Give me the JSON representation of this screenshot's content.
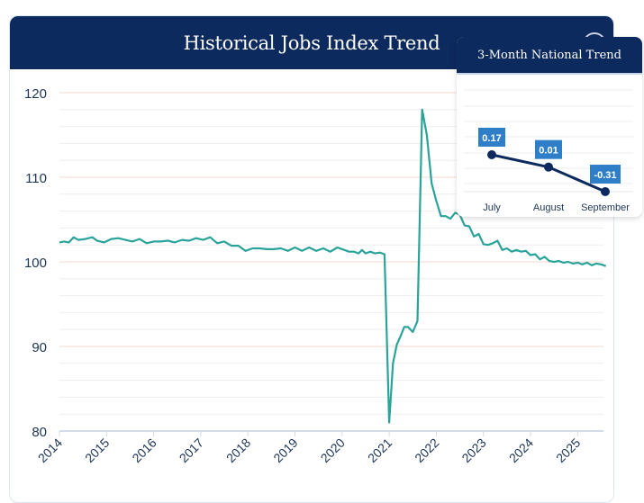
{
  "chart_data": [
    {
      "type": "line",
      "title": "Historical Jobs Index Trend",
      "xlabel": "",
      "ylabel": "",
      "ylim": [
        80,
        120
      ],
      "xlim": [
        2014,
        2025.75
      ],
      "yticks": [
        80,
        90,
        100,
        110,
        120
      ],
      "xticks": [
        "2014",
        "2015",
        "2016",
        "2017",
        "2018",
        "2019",
        "2020",
        "2021",
        "2022",
        "2023",
        "2024",
        "2025"
      ],
      "grid": true,
      "color": "#2aa39a",
      "x": [
        2014.0,
        2014.1,
        2014.2,
        2014.3,
        2014.4,
        2014.55,
        2014.7,
        2014.8,
        2014.95,
        2015.1,
        2015.25,
        2015.4,
        2015.55,
        2015.7,
        2015.85,
        2016.0,
        2016.15,
        2016.3,
        2016.45,
        2016.6,
        2016.75,
        2016.9,
        2017.05,
        2017.2,
        2017.35,
        2017.5,
        2017.65,
        2017.8,
        2017.95,
        2018.1,
        2018.25,
        2018.4,
        2018.55,
        2018.7,
        2018.85,
        2019.0,
        2019.15,
        2019.3,
        2019.45,
        2019.6,
        2019.75,
        2019.9,
        2020.05,
        2020.15,
        2020.25,
        2020.35,
        2020.42,
        2020.5,
        2020.6,
        2020.7,
        2020.8,
        2020.9,
        2021.0,
        2021.08,
        2021.16,
        2021.24,
        2021.32,
        2021.4,
        2021.5,
        2021.6,
        2021.7,
        2021.8,
        2021.9,
        2022.0,
        2022.1,
        2022.2,
        2022.3,
        2022.4,
        2022.5,
        2022.6,
        2022.7,
        2022.8,
        2022.9,
        2023.0,
        2023.1,
        2023.2,
        2023.3,
        2023.4,
        2023.5,
        2023.6,
        2023.7,
        2023.8,
        2023.9,
        2024.0,
        2024.1,
        2024.2,
        2024.3,
        2024.4,
        2024.5,
        2024.6,
        2024.7,
        2024.8,
        2024.9,
        2025.0,
        2025.1,
        2025.2,
        2025.3,
        2025.4,
        2025.5,
        2025.6
      ],
      "values": [
        102.3,
        102.4,
        102.3,
        102.9,
        102.6,
        102.7,
        102.9,
        102.5,
        102.3,
        102.7,
        102.8,
        102.6,
        102.4,
        102.7,
        102.2,
        102.4,
        102.4,
        102.5,
        102.3,
        102.6,
        102.5,
        102.8,
        102.6,
        102.9,
        102.2,
        102.4,
        101.9,
        101.9,
        101.3,
        101.6,
        101.6,
        101.5,
        101.5,
        101.6,
        101.3,
        101.7,
        101.3,
        101.7,
        101.3,
        101.6,
        101.2,
        101.7,
        101.4,
        101.2,
        101.2,
        101.0,
        101.4,
        101.0,
        101.2,
        101.0,
        101.1,
        100.9,
        81.0,
        88.0,
        90.2,
        91.2,
        92.3,
        92.3,
        91.7,
        93.0,
        118.0,
        115.0,
        109.3,
        107.2,
        105.4,
        105.4,
        105.1,
        105.8,
        105.6,
        104.3,
        104.2,
        103.0,
        103.3,
        102.1,
        102.0,
        102.2,
        102.5,
        101.4,
        101.6,
        101.2,
        101.4,
        101.2,
        101.3,
        100.8,
        100.9,
        100.3,
        100.6,
        100.1,
        100.0,
        100.1,
        99.9,
        100.0,
        99.8,
        99.9,
        99.7,
        99.9,
        99.6,
        99.8,
        99.7,
        99.5
      ]
    },
    {
      "type": "line",
      "title": "3-Month National Trend",
      "categories": [
        "July",
        "August",
        "September"
      ],
      "values": [
        0.17,
        0.01,
        -0.31
      ],
      "labels": [
        "0.17",
        "0.01",
        "-0.31"
      ],
      "color": "#0d2a5e",
      "label_bg": "#2f7fc8"
    }
  ]
}
